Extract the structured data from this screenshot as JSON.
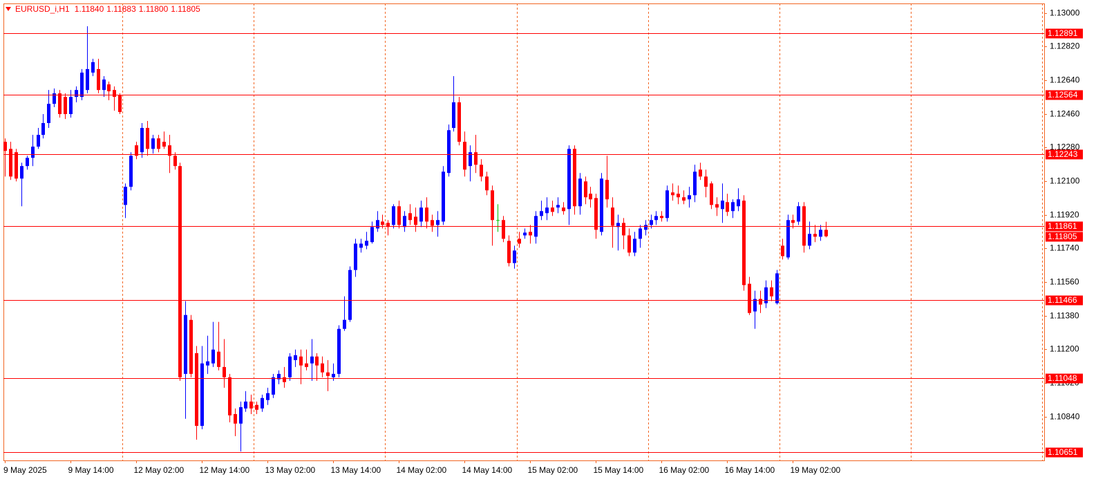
{
  "chart_data": {
    "type": "candlestick",
    "header": {
      "symbol": "EURUSD_i,H1",
      "ohlc": [
        "1.11840",
        "1.11883",
        "1.11800",
        "1.11805"
      ]
    },
    "up_color": "#0000ff",
    "down_color": "#ff0000",
    "doji_color": "#00c000",
    "ylim": [
      1.10606,
      1.13051
    ],
    "yticks": [
      {
        "value": 1.13,
        "label": "1.13000"
      },
      {
        "value": 1.1282,
        "label": "1.12820"
      },
      {
        "value": 1.1264,
        "label": "1.12640"
      },
      {
        "value": 1.1246,
        "label": "1.12460"
      },
      {
        "value": 1.1228,
        "label": "1.12280"
      },
      {
        "value": 1.121,
        "label": "1.12100"
      },
      {
        "value": 1.1192,
        "label": "1.11920"
      },
      {
        "value": 1.1174,
        "label": "1.11740"
      },
      {
        "value": 1.1156,
        "label": "1.11560"
      },
      {
        "value": 1.1138,
        "label": "1.11380"
      },
      {
        "value": 1.112,
        "label": "1.11200"
      },
      {
        "value": 1.1102,
        "label": "1.11020"
      },
      {
        "value": 1.1084,
        "label": "1.10840"
      }
    ],
    "levels": [
      1.12891,
      1.12564,
      1.12243,
      1.11861,
      1.11466,
      1.11048,
      1.10651
    ],
    "level_color": "#ff0000",
    "last_price": 1.11805,
    "categories": [
      "9 May 2025",
      null,
      null,
      null,
      null,
      null,
      null,
      null,
      null,
      null,
      null,
      null,
      "9 May 14:00",
      null,
      null,
      null,
      null,
      null,
      null,
      null,
      null,
      null,
      null,
      null,
      "12 May 02:00",
      null,
      null,
      null,
      null,
      null,
      null,
      null,
      null,
      null,
      null,
      null,
      "12 May 14:00",
      null,
      null,
      null,
      null,
      null,
      null,
      null,
      null,
      null,
      null,
      null,
      "13 May 02:00",
      null,
      null,
      null,
      null,
      null,
      null,
      null,
      null,
      null,
      null,
      null,
      "13 May 14:00",
      null,
      null,
      null,
      null,
      null,
      null,
      null,
      null,
      null,
      null,
      null,
      "14 May 02:00",
      null,
      null,
      null,
      null,
      null,
      null,
      null,
      null,
      null,
      null,
      null,
      "14 May 14:00",
      null,
      null,
      null,
      null,
      null,
      null,
      null,
      null,
      null,
      null,
      null,
      "15 May 02:00",
      null,
      null,
      null,
      null,
      null,
      null,
      null,
      null,
      null,
      null,
      null,
      "15 May 14:00",
      null,
      null,
      null,
      null,
      null,
      null,
      null,
      null,
      null,
      null,
      null,
      "16 May 02:00",
      null,
      null,
      null,
      null,
      null,
      null,
      null,
      null,
      null,
      null,
      null,
      "16 May 14:00",
      null,
      null,
      null,
      null,
      null,
      null,
      null,
      null,
      null,
      null,
      null,
      "19 May 02:00",
      null,
      null,
      null,
      null,
      null,
      null
    ],
    "open": [
      1.12311,
      1.12273,
      1.12255,
      1.12114,
      1.12181,
      1.12225,
      1.12285,
      1.12348,
      1.12411,
      1.12514,
      1.1257,
      1.12551,
      1.12459,
      1.12551,
      1.12551,
      1.12588,
      1.12681,
      1.127,
      1.12588,
      1.12618,
      1.12588,
      1.12559,
      1.11973,
      1.1207,
      1.12292,
      1.12255,
      1.12385,
      1.12273,
      1.12329,
      1.12311,
      1.12292,
      1.12236,
      1.12181,
      1.11069,
      1.11358,
      1.1118,
      1.10791,
      1.11114,
      1.11125,
      1.11188,
      1.11106,
      1.11051,
      1.10854,
      1.10803,
      1.10884,
      1.10921,
      1.10903,
      1.10884,
      1.10929,
      1.10958,
      1.1104,
      1.11051,
      1.11051,
      1.11143,
      1.11162,
      1.11125,
      1.11125,
      1.11162,
      1.11125,
      1.11077,
      1.11051,
      1.11069,
      1.1131,
      1.11358,
      1.11625,
      1.11744,
      1.11755,
      1.11774,
      1.11847,
      1.11884,
      1.11877,
      1.11866,
      1.11966,
      1.11855,
      1.11929,
      1.1191,
      1.11884,
      1.11959,
      1.11892,
      1.11866,
      1.11884,
      1.12144,
      1.12385,
      1.12522,
      1.12311,
      1.12181,
      1.12255,
      1.12188,
      1.12125,
      1.12051,
      1.11892,
      1.11892,
      1.11781,
      1.11662,
      1.11792,
      1.1181,
      1.11829,
      1.11803,
      1.11914,
      1.11929,
      1.11959,
      1.11959,
      1.11959,
      1.11951,
      1.12273,
      1.11966,
      1.12099,
      1.12033,
      1.1201,
      1.11829,
      1.12107,
      1.11959,
      1.11855,
      1.11877,
      1.1181,
      1.11718,
      1.11792,
      1.1184,
      1.11866,
      1.11892,
      1.11914,
      1.11903,
      1.1204,
      1.12033,
      1.12014,
      1.12003,
      1.12025,
      1.12162,
      1.12125,
      1.12088,
      1.11977,
      1.11951,
      1.11988,
      1.1194,
      1.11966,
      1.11996,
      1.11551,
      1.11403,
      1.1147,
      1.11447,
      1.11532,
      1.11447,
      1.11755,
      1.11692,
      1.11892,
      1.11884,
      1.11966,
      1.11755,
      1.11818,
      1.11803,
      1.1184
    ],
    "high": [
      1.12329,
      1.12311,
      1.12273,
      1.12199,
      1.12236,
      1.12348,
      1.12385,
      1.12459,
      1.12588,
      1.12596,
      1.12588,
      1.1257,
      1.12588,
      1.12607,
      1.127,
      1.12929,
      1.12755,
      1.12755,
      1.12662,
      1.12633,
      1.12607,
      1.1257,
      1.12088,
      1.12255,
      1.12311,
      1.12411,
      1.12422,
      1.12348,
      1.12348,
      1.12366,
      1.12348,
      1.12255,
      1.12199,
      1.11458,
      1.11384,
      1.11218,
      1.11218,
      1.11273,
      1.11347,
      1.11347,
      1.11255,
      1.11069,
      1.10884,
      1.10921,
      1.10977,
      1.10958,
      1.10921,
      1.10958,
      1.10995,
      1.11069,
      1.11088,
      1.11106,
      1.1118,
      1.11199,
      1.11199,
      1.11199,
      1.11255,
      1.1118,
      1.11162,
      1.11143,
      1.11125,
      1.11329,
      1.11484,
      1.11644,
      1.11792,
      1.11792,
      1.11829,
      1.11884,
      1.1194,
      1.11921,
      1.11892,
      1.11977,
      1.11996,
      1.1194,
      1.11977,
      1.11959,
      1.11996,
      1.12014,
      1.11921,
      1.1194,
      1.12181,
      1.12403,
      1.12662,
      1.12551,
      1.12366,
      1.12292,
      1.12348,
      1.12218,
      1.12151,
      1.12077,
      1.11977,
      1.11914,
      1.1181,
      1.11755,
      1.11829,
      1.11847,
      1.11866,
      1.1194,
      1.11996,
      1.12014,
      1.11996,
      1.12014,
      1.11988,
      1.12292,
      1.12292,
      1.12144,
      1.12125,
      1.1207,
      1.12033,
      1.12144,
      1.12236,
      1.12014,
      1.11921,
      1.11903,
      1.11847,
      1.11829,
      1.11866,
      1.11892,
      1.11921,
      1.1194,
      1.1194,
      1.12077,
      1.12088,
      1.12077,
      1.12051,
      1.1207,
      1.12188,
      1.12199,
      1.12162,
      1.12099,
      1.12014,
      1.12088,
      1.12033,
      1.12003,
      1.12062,
      1.12025,
      1.11588,
      1.11514,
      1.11514,
      1.11569,
      1.11569,
      1.11625,
      1.11792,
      1.11921,
      1.11921,
      1.11988,
      1.11988,
      1.11884,
      1.11866,
      1.11866,
      1.11883
    ],
    "low": [
      1.12125,
      1.12107,
      1.12099,
      1.11966,
      1.12162,
      1.12181,
      1.12273,
      1.12329,
      1.12385,
      1.12496,
      1.1244,
      1.12433,
      1.1244,
      1.12522,
      1.12533,
      1.1257,
      1.12662,
      1.1257,
      1.12551,
      1.12533,
      1.12477,
      1.12459,
      1.11903,
      1.12051,
      1.12218,
      1.12225,
      1.12236,
      1.12248,
      1.12255,
      1.12273,
      1.12144,
      1.12162,
      1.11032,
      1.10829,
      1.11051,
      1.10717,
      1.10773,
      1.11069,
      1.11106,
      1.11088,
      1.10995,
      1.1081,
      1.10736,
      1.10654,
      1.10866,
      1.10854,
      1.10854,
      1.10866,
      1.10903,
      1.1094,
      1.11014,
      1.10995,
      1.11032,
      1.11106,
      1.11014,
      1.11088,
      1.11032,
      1.11032,
      1.11051,
      1.10977,
      1.11032,
      1.11051,
      1.11299,
      1.11347,
      1.11588,
      1.11718,
      1.11736,
      1.11766,
      1.11829,
      1.11847,
      1.1181,
      1.11847,
      1.11847,
      1.11829,
      1.11866,
      1.11829,
      1.11855,
      1.11847,
      1.11829,
      1.11803,
      1.11866,
      1.12125,
      1.12366,
      1.12292,
      1.12125,
      1.12099,
      1.12144,
      1.12099,
      1.12025,
      1.11755,
      1.11829,
      1.11774,
      1.11644,
      1.11632,
      1.11744,
      1.11792,
      1.11766,
      1.11766,
      1.11892,
      1.11892,
      1.11914,
      1.11929,
      1.11921,
      1.11866,
      1.11921,
      1.11921,
      1.11977,
      1.11959,
      1.11792,
      1.1181,
      1.11959,
      1.11744,
      1.11729,
      1.11736,
      1.11699,
      1.11699,
      1.11744,
      1.1181,
      1.11847,
      1.11866,
      1.11884,
      1.11884,
      1.11996,
      1.11977,
      1.11977,
      1.11959,
      1.11988,
      1.12107,
      1.12014,
      1.11951,
      1.11914,
      1.11877,
      1.11914,
      1.11903,
      1.1194,
      1.11514,
      1.11384,
      1.1131,
      1.11395,
      1.11421,
      1.11458,
      1.1144,
      1.11681,
      1.11681,
      1.11847,
      1.11866,
      1.11718,
      1.11736,
      1.11774,
      1.11781,
      1.118
    ],
    "close": [
      1.12262,
      1.12125,
      1.12114,
      1.12181,
      1.12225,
      1.12285,
      1.12348,
      1.12411,
      1.12514,
      1.1257,
      1.12459,
      1.12459,
      1.12551,
      1.12588,
      1.12681,
      1.127,
      1.12737,
      1.12588,
      1.12644,
      1.12581,
      1.12551,
      1.1247,
      1.1207,
      1.12236,
      1.12236,
      1.12385,
      1.12273,
      1.12329,
      1.12273,
      1.12285,
      1.12236,
      1.12181,
      1.11051,
      1.11384,
      1.11069,
      1.10791,
      1.11125,
      1.11136,
      1.11199,
      1.11106,
      1.11051,
      1.10847,
      1.10803,
      1.10891,
      1.10921,
      1.10884,
      1.10877,
      1.1094,
      1.10966,
      1.11051,
      1.11069,
      1.11025,
      1.11162,
      1.11169,
      1.11114,
      1.11106,
      1.11162,
      1.11114,
      1.11077,
      1.11058,
      1.11069,
      1.1131,
      1.11358,
      1.11625,
      1.11766,
      1.11766,
      1.11781,
      1.11855,
      1.11892,
      1.11866,
      1.11855,
      1.11966,
      1.11866,
      1.11914,
      1.11892,
      1.11866,
      1.11959,
      1.11884,
      1.11862,
      1.11892,
      1.12151,
      1.12373,
      1.12522,
      1.12311,
      1.12162,
      1.12255,
      1.12188,
      1.12125,
      1.12051,
      1.11892,
      1.11892,
      1.11792,
      1.11662,
      1.11729,
      1.11766,
      1.11825,
      1.1181,
      1.11914,
      1.1194,
      1.11959,
      1.11936,
      1.11973,
      1.1194,
      1.12273,
      1.11966,
      1.12114,
      1.12014,
      1.12003,
      1.1184,
      1.12114,
      1.12003,
      1.11862,
      1.11877,
      1.1181,
      1.11718,
      1.11792,
      1.11847,
      1.11866,
      1.11892,
      1.11914,
      1.11903,
      1.12051,
      1.12025,
      1.12014,
      1.11996,
      1.12025,
      1.12151,
      1.12125,
      1.1207,
      1.11973,
      1.11959,
      1.11996,
      1.11936,
      1.11988,
      1.12003,
      1.11544,
      1.11395,
      1.1147,
      1.1144,
      1.11532,
      1.11484,
      1.11607,
      1.11699,
      1.11892,
      1.11877,
      1.11966,
      1.11755,
      1.11818,
      1.11803,
      1.1184,
      1.11805
    ]
  }
}
